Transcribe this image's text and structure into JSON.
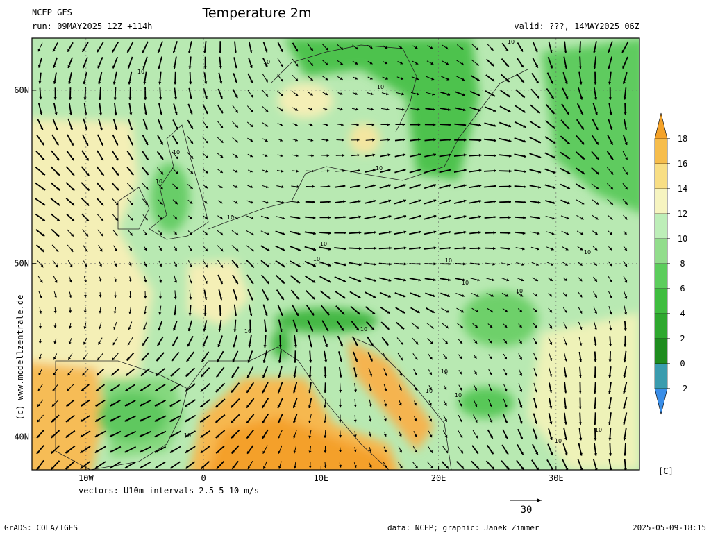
{
  "header": {
    "model": "NCEP GFS",
    "run": "run: 09MAY2025 12Z +114h",
    "title": "Temperature 2m",
    "valid": "valid: ???, 14MAY2025 06Z"
  },
  "map": {
    "lat_range": [
      38.1,
      63
    ],
    "lon_range": [
      -14.6,
      37.1
    ],
    "lat_ticks": [
      {
        "value": 60,
        "label": "60N"
      },
      {
        "value": 50,
        "label": "50N"
      },
      {
        "value": 40,
        "label": "40N"
      }
    ],
    "lon_ticks": [
      {
        "value": -10,
        "label": "10W"
      },
      0,
      {
        "value": 10,
        "label": "10E"
      },
      {
        "value": 20,
        "label": "20E"
      },
      {
        "value": 30,
        "label": "30E"
      }
    ],
    "contour_labels": [
      "10",
      "10",
      "10",
      "10",
      "10",
      "10",
      "10",
      "10",
      "10",
      "10",
      "10",
      "10",
      "10",
      "10",
      "10",
      "10",
      "10",
      "10",
      "10",
      "10",
      "10",
      "10"
    ]
  },
  "colorbar": {
    "ticks": [
      -2,
      0,
      2,
      4,
      6,
      8,
      10,
      12,
      14,
      16,
      18
    ],
    "colors": [
      "#3a8ee8",
      "#3a9cae",
      "#1e8c1e",
      "#2ea82e",
      "#3fbd3f",
      "#5ccd5c",
      "#92dd8c",
      "#bdeeb8",
      "#f6f4c0",
      "#f8de84",
      "#f6bd4c",
      "#f4a228"
    ],
    "unit": "[C]"
  },
  "vectors": {
    "caption": "vectors: U10m  intervals 2.5 5 10 m/s",
    "reference": "30"
  },
  "copyright": "(c) www.modellzentrale.de",
  "footer": {
    "software": "GrADS: COLA/IGES",
    "credit": "data: NCEP; graphic: Janek Zimmer",
    "timestamp": "2025-05-09-18:15"
  }
}
